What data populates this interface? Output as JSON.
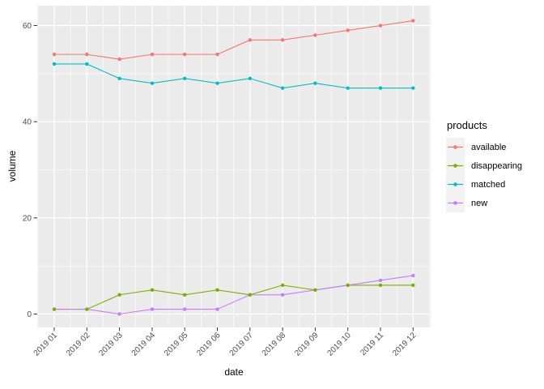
{
  "chart_data": {
    "type": "line",
    "title": "",
    "xlabel": "date",
    "ylabel": "volume",
    "legend_title": "products",
    "legend_position": "right",
    "grid": true,
    "x_label_angle": 45,
    "x_categories": [
      "2019 01",
      "2019 02",
      "2019 03",
      "2019 04",
      "2019 05",
      "2019 06",
      "2019 07",
      "2019 08",
      "2019 09",
      "2019 10",
      "2019 11",
      "2019 12"
    ],
    "yticks": [
      0,
      20,
      40,
      60
    ],
    "ylim": [
      0,
      62
    ],
    "series": [
      {
        "name": "available",
        "color": "#F8766D",
        "values": [
          54,
          54,
          53,
          54,
          54,
          54,
          57,
          57,
          58,
          59,
          60,
          61
        ]
      },
      {
        "name": "disappearing",
        "color": "#7CAE00",
        "values": [
          1,
          1,
          4,
          5,
          4,
          5,
          4,
          6,
          5,
          6,
          6,
          6
        ]
      },
      {
        "name": "matched",
        "color": "#00BFC4",
        "values": [
          52,
          52,
          49,
          48,
          49,
          48,
          49,
          47,
          48,
          47,
          47,
          47
        ]
      },
      {
        "name": "new",
        "color": "#C77CFF",
        "values": [
          1,
          1,
          0,
          1,
          1,
          1,
          4,
          4,
          5,
          6,
          7,
          8
        ]
      }
    ]
  },
  "theme": {
    "background": "#FFFFFF",
    "panel_bg": "#EBEBEB",
    "grid_color": "#FFFFFF",
    "tick_mark_color": "#333333",
    "tick_text_color": "#4D4D4D",
    "axis_title_color": "#000000",
    "legend_key_bg": "#F2F2F2"
  }
}
